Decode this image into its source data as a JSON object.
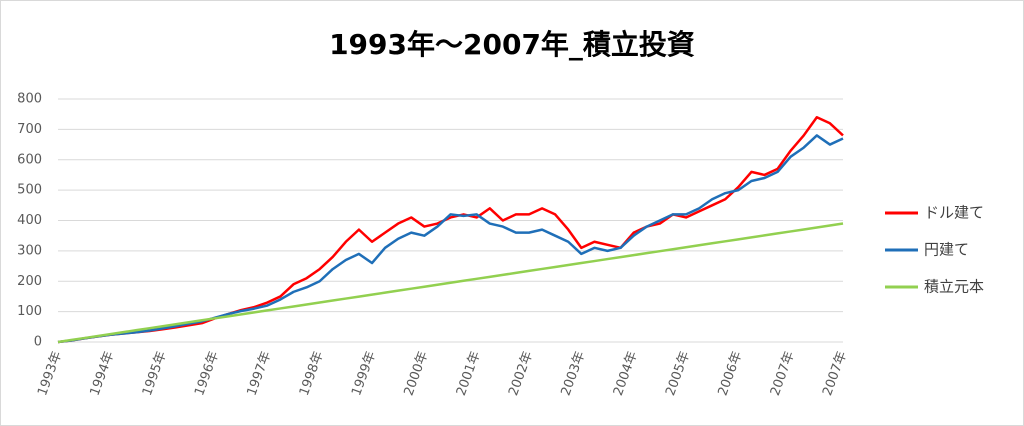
{
  "chart_data": {
    "type": "line",
    "title": "1993年〜2007年_積立投資",
    "categories": [
      "1993年",
      null,
      null,
      null,
      "1994年",
      null,
      null,
      null,
      "1995年",
      null,
      null,
      null,
      "1996年",
      null,
      null,
      null,
      "1997年",
      null,
      null,
      null,
      "1998年",
      null,
      null,
      null,
      "1999年",
      null,
      null,
      null,
      "2000年",
      null,
      null,
      null,
      "2001年",
      null,
      null,
      null,
      "2002年",
      null,
      null,
      null,
      "2003年",
      null,
      null,
      null,
      "2004年",
      null,
      null,
      null,
      "2005年",
      null,
      null,
      null,
      "2006年",
      null,
      null,
      null,
      "2007年",
      null,
      null,
      null,
      "2007年"
    ],
    "series": [
      {
        "name": "ドル建て",
        "color": "#ff0000",
        "values": [
          0,
          5,
          12,
          18,
          24,
          28,
          32,
          36,
          42,
          48,
          55,
          62,
          78,
          92,
          105,
          115,
          130,
          150,
          190,
          210,
          240,
          280,
          330,
          370,
          330,
          360,
          390,
          410,
          380,
          390,
          410,
          420,
          410,
          440,
          400,
          420,
          420,
          440,
          420,
          370,
          310,
          330,
          320,
          310,
          360,
          380,
          390,
          420,
          410,
          430,
          450,
          470,
          510,
          560,
          550,
          570,
          630,
          680,
          740,
          720,
          680
        ]
      },
      {
        "name": "円建て",
        "color": "#1f6fb8",
        "values": [
          0,
          5,
          12,
          18,
          24,
          28,
          32,
          38,
          45,
          52,
          60,
          68,
          80,
          92,
          102,
          110,
          120,
          140,
          165,
          180,
          200,
          240,
          270,
          290,
          260,
          310,
          340,
          360,
          350,
          380,
          420,
          415,
          420,
          390,
          380,
          360,
          360,
          370,
          350,
          330,
          290,
          310,
          300,
          310,
          350,
          380,
          400,
          420,
          420,
          440,
          470,
          490,
          500,
          530,
          540,
          560,
          610,
          640,
          680,
          650,
          670
        ]
      },
      {
        "name": "積立元本",
        "color": "#92d050",
        "values": [
          0,
          6.5,
          13,
          19.5,
          26,
          32.5,
          39,
          45.5,
          52,
          58.5,
          65,
          71.5,
          78,
          84.5,
          91,
          97.5,
          104,
          110.5,
          117,
          123.5,
          130,
          136.5,
          143,
          149.5,
          156,
          162.5,
          169,
          175.5,
          182,
          188.5,
          195,
          201.5,
          208,
          214.5,
          221,
          227.5,
          234,
          240.5,
          247,
          253.5,
          260,
          266.5,
          273,
          279.5,
          286,
          292.5,
          299,
          305.5,
          312,
          318.5,
          325,
          331.5,
          338,
          344.5,
          351,
          357.5,
          364,
          370.5,
          377,
          383.5,
          390
        ]
      }
    ],
    "ylim": [
      0,
      800
    ],
    "yticks": [
      0,
      100,
      200,
      300,
      400,
      500,
      600,
      700,
      800
    ],
    "grid": true,
    "legend": "right"
  }
}
